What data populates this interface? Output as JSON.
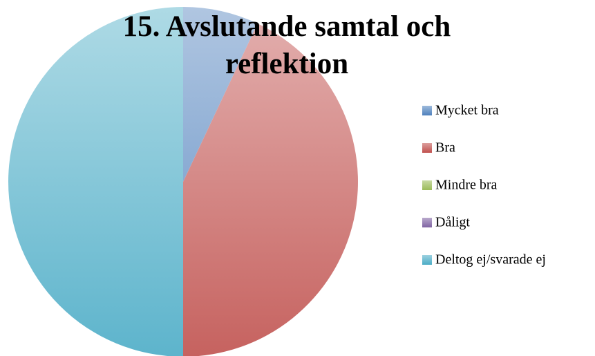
{
  "chart_data": {
    "type": "pie",
    "title": [
      "15. Avslutande samtal och",
      "reflektion"
    ],
    "categories": [
      "Mycket bra",
      "Bra",
      "Mindre bra",
      "Dåligt",
      "Deltog ej/svarade ej"
    ],
    "values": [
      7,
      43,
      0,
      0,
      50
    ],
    "colors": [
      "#4f81bd",
      "#c0504d",
      "#9bbb59",
      "#8064a2",
      "#4bacc6"
    ],
    "legend": "right"
  }
}
